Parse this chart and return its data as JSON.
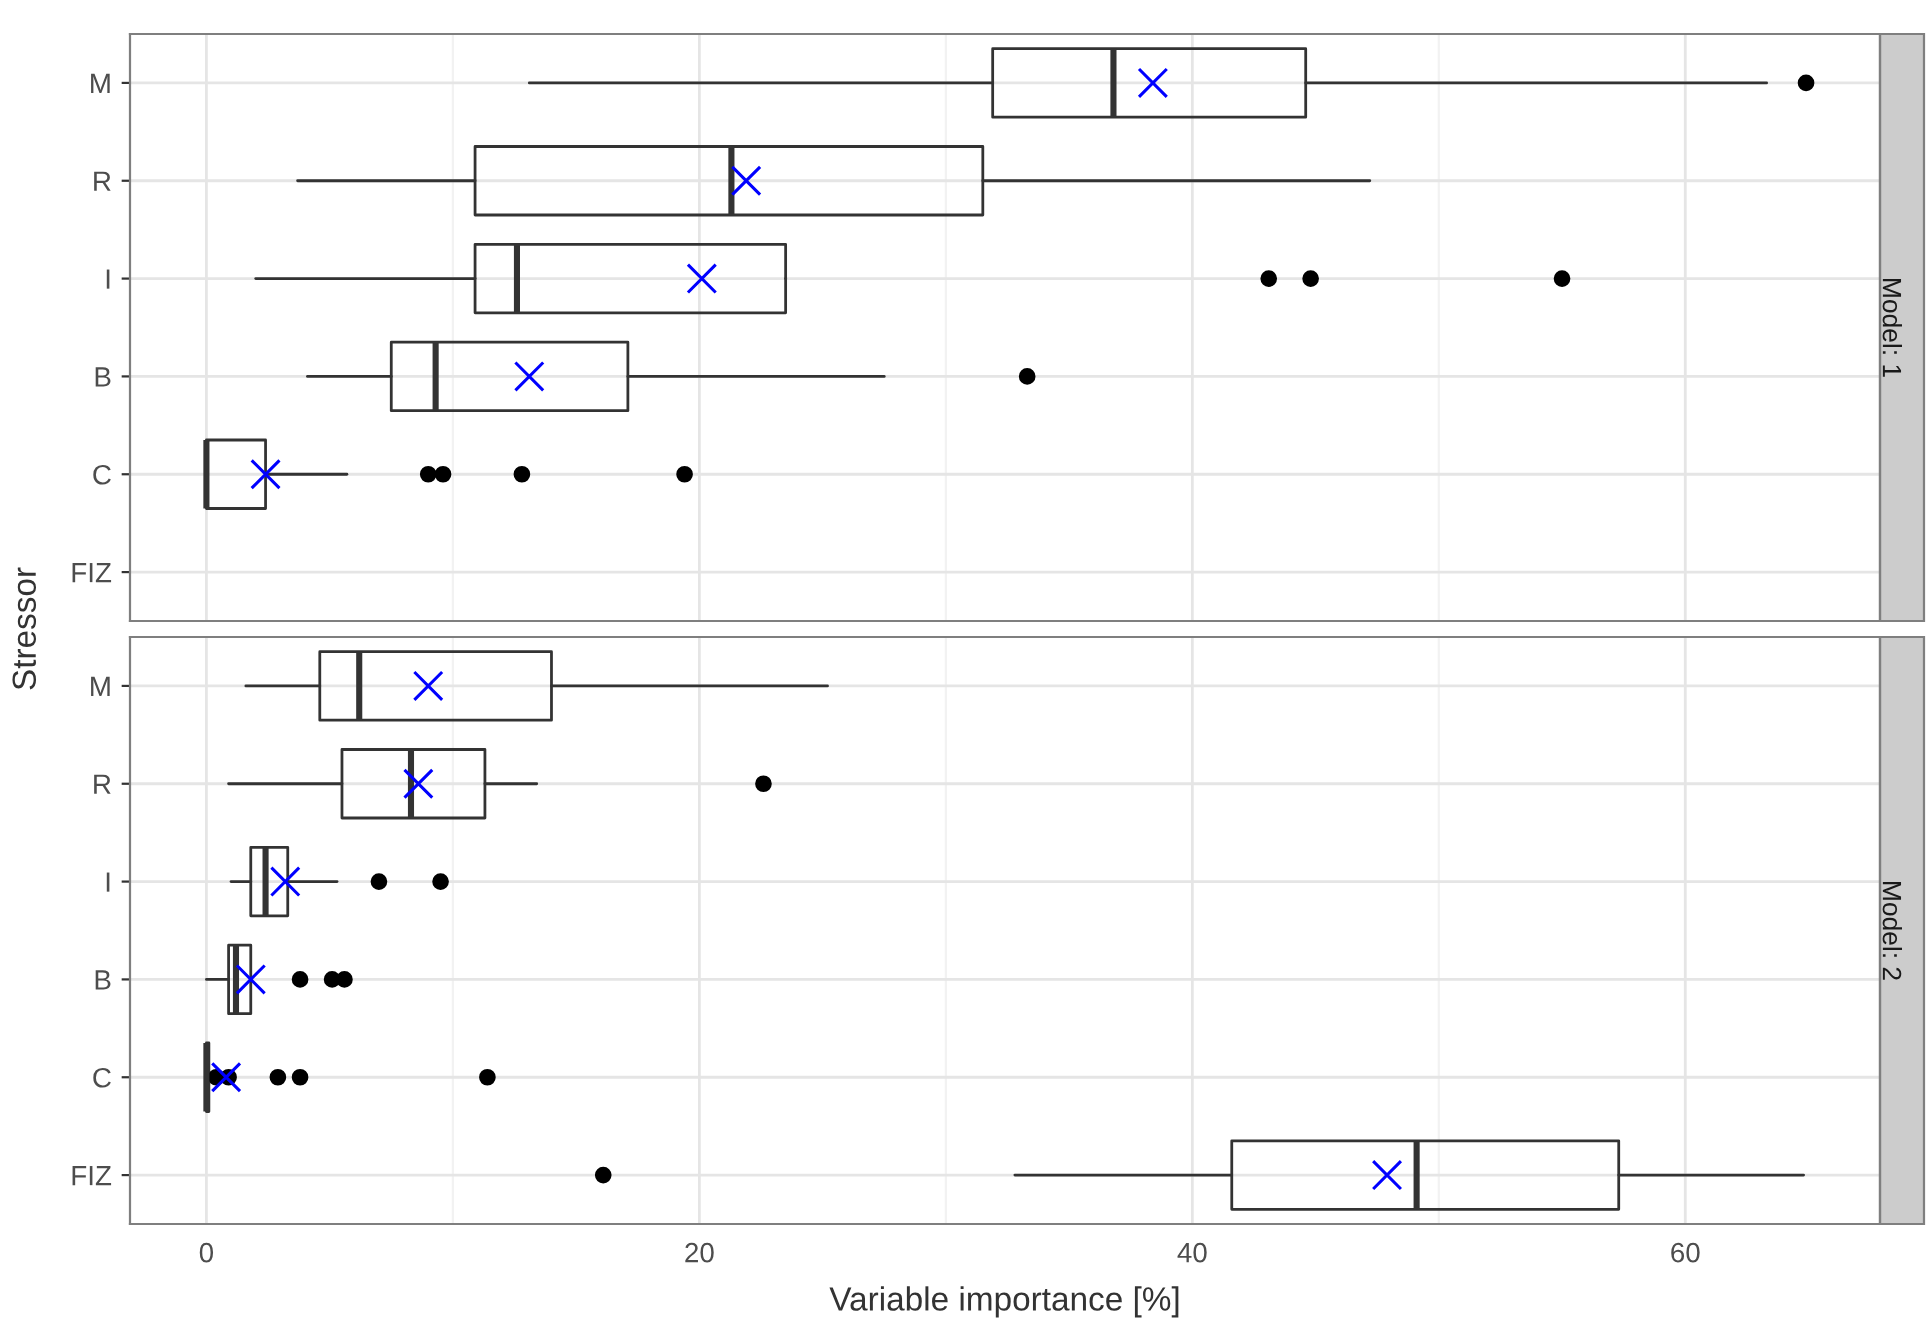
{
  "chart_data": [
    {
      "type": "box",
      "orientation": "horizontal",
      "title": "Model: 1",
      "ylabel": "Stressor",
      "categories": [
        "M",
        "R",
        "I",
        "B",
        "C",
        "FIZ"
      ],
      "xlim": [
        -3.1,
        67.9
      ],
      "xticks": [
        0,
        20,
        40,
        60
      ],
      "tick_labels": "y",
      "grid": true,
      "color": "#333333",
      "boxes": [
        {
          "low": 13.1,
          "q1": 31.9,
          "median": 36.8,
          "q3": 44.6,
          "high": 63.3,
          "mean": 38.4,
          "outliers": [
            64.9
          ]
        },
        {
          "low": 3.7,
          "q1": 10.9,
          "median": 21.3,
          "q3": 31.5,
          "high": 47.2,
          "mean": 21.9
        },
        {
          "low": 2.0,
          "q1": 10.9,
          "median": 12.6,
          "q3": 23.5,
          "high": 23.5,
          "mean": 20.1,
          "outliers": [
            43.1,
            44.8,
            55.0
          ]
        },
        {
          "low": 4.1,
          "q1": 7.5,
          "median": 9.3,
          "q3": 17.1,
          "high": 27.5,
          "mean": 13.1,
          "outliers": [
            33.3
          ]
        },
        {
          "low": 0,
          "q1": 0,
          "median": 0,
          "q3": 2.4,
          "high": 5.7,
          "mean": 2.4,
          "outliers": [
            9.0,
            9.6,
            12.8,
            19.4
          ]
        },
        null
      ]
    },
    {
      "type": "box",
      "orientation": "horizontal",
      "title": "Model: 2",
      "xlabel": "Variable importance [%]",
      "categories": [
        "M",
        "R",
        "I",
        "B",
        "C",
        "FIZ"
      ],
      "xlim": [
        -3.1,
        67.9
      ],
      "xticks": [
        0,
        20,
        40,
        60
      ],
      "grid": true,
      "color": "#333333",
      "boxes": [
        {
          "low": 1.6,
          "q1": 4.6,
          "median": 6.2,
          "q3": 14.0,
          "high": 25.2,
          "mean": 9.0
        },
        {
          "low": 0.9,
          "q1": 5.5,
          "median": 8.3,
          "q3": 11.3,
          "high": 13.4,
          "mean": 8.6,
          "outliers": [
            22.6
          ]
        },
        {
          "low": 1.0,
          "q1": 1.8,
          "median": 2.4,
          "q3": 3.3,
          "high": 5.3,
          "mean": 3.2,
          "outliers": [
            7.0,
            9.5
          ]
        },
        {
          "low": 0.0,
          "q1": 0.9,
          "median": 1.2,
          "q3": 1.8,
          "high": 1.8,
          "mean": 1.8,
          "outliers": [
            3.8,
            5.1,
            5.6
          ]
        },
        {
          "low": 0,
          "q1": 0,
          "median": 0,
          "q3": 0.1,
          "high": 0.3,
          "mean": 0.8,
          "outliers": [
            0.4,
            0.9,
            2.9,
            3.8,
            11.4
          ]
        },
        {
          "low": 32.8,
          "q1": 41.6,
          "median": 49.1,
          "q3": 57.3,
          "high": 64.8,
          "mean": 47.9,
          "outliers": [
            16.1
          ]
        }
      ]
    }
  ]
}
